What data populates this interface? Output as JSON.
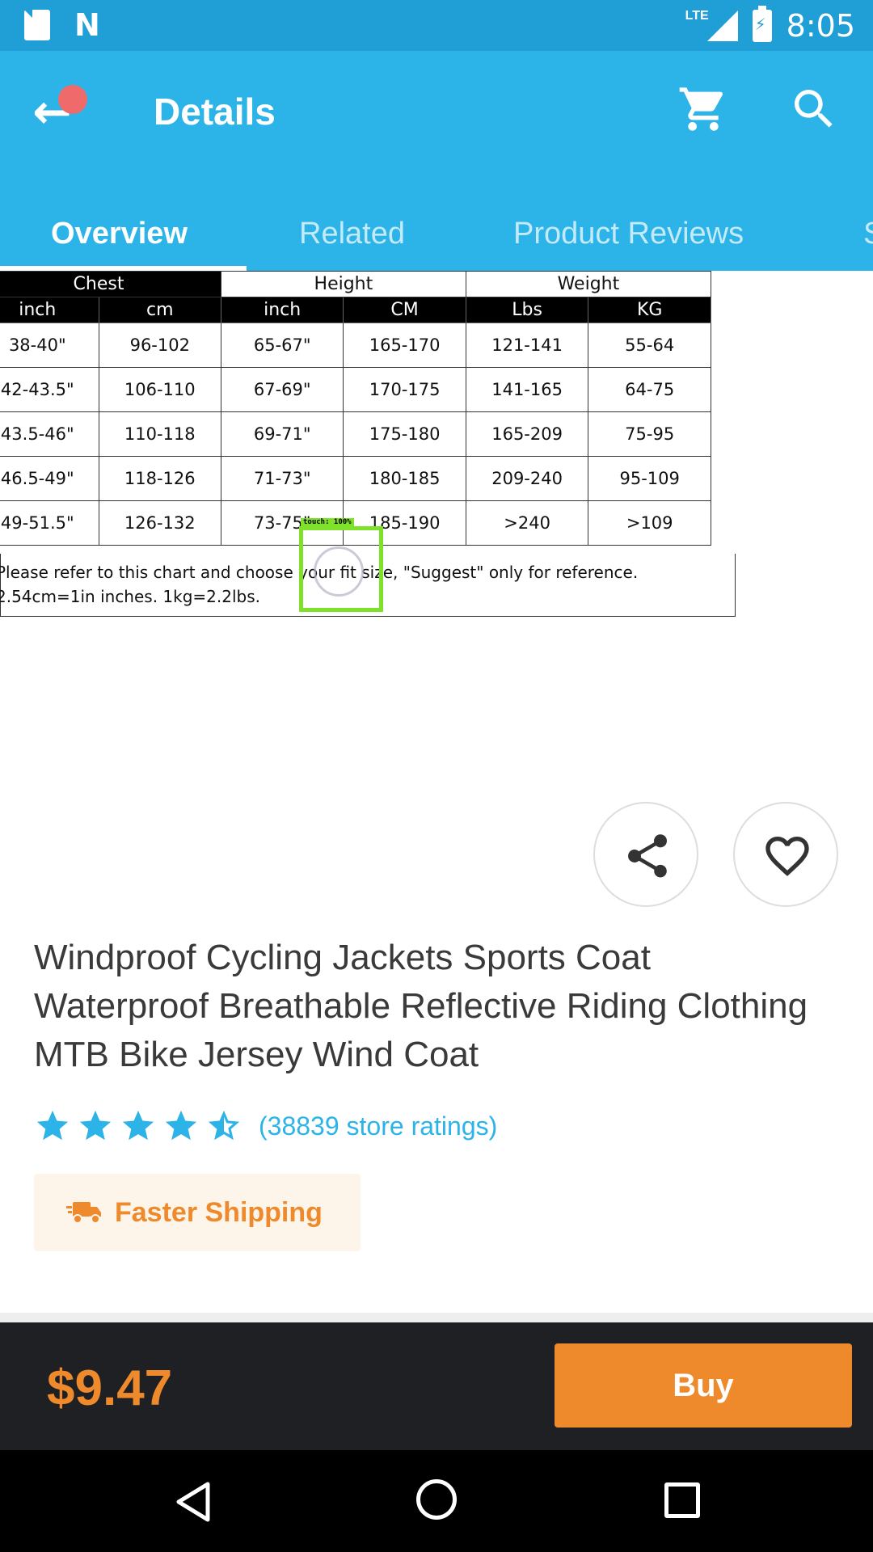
{
  "status_bar": {
    "network": "LTE",
    "time": "8:05"
  },
  "app_bar": {
    "title": "Details",
    "tabs": [
      {
        "label": "Overview"
      },
      {
        "label": "Related"
      },
      {
        "label": "Product Reviews"
      },
      {
        "label": "S"
      }
    ]
  },
  "size_chart": {
    "group_headers": [
      "Chest",
      "Height",
      "Weight"
    ],
    "column_headers": [
      "inch",
      "cm",
      "inch",
      "CM",
      "Lbs",
      "KG"
    ],
    "rows": [
      [
        "38-40\"",
        "96-102",
        "65-67\"",
        "165-170",
        "121-141",
        "55-64"
      ],
      [
        "42-43.5\"",
        "106-110",
        "67-69\"",
        "170-175",
        "141-165",
        "64-75"
      ],
      [
        "43.5-46\"",
        "110-118",
        "69-71\"",
        "175-180",
        "165-209",
        "75-95"
      ],
      [
        "46.5-49\"",
        "118-126",
        "71-73\"",
        "180-185",
        "209-240",
        "95-109"
      ],
      [
        "49-51.5\"",
        "126-132",
        "73-75\"",
        "185-190",
        ">240",
        ">109"
      ]
    ],
    "note_line1": "Please refer to this chart and choose your fit size, \"Suggest\" only for reference.",
    "note_line2": "2.54cm=1in inches. 1kg=2.2lbs."
  },
  "touch_overlay": {
    "label": "touch: 100%"
  },
  "product": {
    "title": "Windproof Cycling Jackets Sports Coat Waterproof Breathable Reflective Riding Clothing MTB Bike Jersey Wind Coat",
    "rating": 4.5,
    "ratings_text": "(38839 store ratings)",
    "shipping_label": "Faster Shipping",
    "price": "$9.47",
    "buy_label": "Buy"
  },
  "colors": {
    "primary": "#2cb3e8",
    "accent": "#ef8a2c",
    "bottom_bar": "#1e2023"
  }
}
